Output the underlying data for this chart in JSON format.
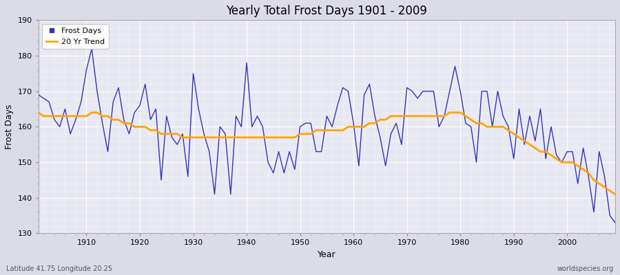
{
  "title": "Yearly Total Frost Days 1901 - 2009",
  "xlabel": "Year",
  "ylabel": "Frost Days",
  "xlim": [
    1901,
    2009
  ],
  "ylim": [
    130,
    190
  ],
  "yticks": [
    130,
    140,
    150,
    160,
    170,
    180,
    190
  ],
  "xticks": [
    1910,
    1920,
    1930,
    1940,
    1950,
    1960,
    1970,
    1980,
    1990,
    2000
  ],
  "line_color": "#3333bb",
  "trend_color": "#FFA500",
  "bg_color": "#dcdce8",
  "plot_bg_color": "#e8e8f2",
  "grid_color": "#ffffff",
  "subtitle_left": "Latitude 41.75 Longitude 20.25",
  "subtitle_right": "worldspecies.org",
  "legend_labels": [
    "Frost Days",
    "20 Yr Trend"
  ],
  "years": [
    1901,
    1902,
    1903,
    1904,
    1905,
    1906,
    1907,
    1908,
    1909,
    1910,
    1911,
    1912,
    1913,
    1914,
    1915,
    1916,
    1917,
    1918,
    1919,
    1920,
    1921,
    1922,
    1923,
    1924,
    1925,
    1926,
    1927,
    1928,
    1929,
    1930,
    1931,
    1932,
    1933,
    1934,
    1935,
    1936,
    1937,
    1938,
    1939,
    1940,
    1941,
    1942,
    1943,
    1944,
    1945,
    1946,
    1947,
    1948,
    1949,
    1950,
    1951,
    1952,
    1953,
    1954,
    1955,
    1956,
    1957,
    1958,
    1959,
    1960,
    1961,
    1962,
    1963,
    1964,
    1965,
    1966,
    1967,
    1968,
    1969,
    1970,
    1971,
    1972,
    1973,
    1974,
    1975,
    1976,
    1977,
    1978,
    1979,
    1980,
    1981,
    1982,
    1983,
    1984,
    1985,
    1986,
    1987,
    1988,
    1989,
    1990,
    1991,
    1992,
    1993,
    1994,
    1995,
    1996,
    1997,
    1998,
    1999,
    2000,
    2001,
    2002,
    2003,
    2004,
    2005,
    2006,
    2007,
    2008,
    2009
  ],
  "frost_days": [
    169,
    168,
    167,
    162,
    160,
    165,
    158,
    162,
    167,
    176,
    182,
    170,
    161,
    153,
    167,
    171,
    162,
    158,
    164,
    166,
    172,
    162,
    165,
    145,
    163,
    157,
    155,
    158,
    146,
    175,
    165,
    158,
    153,
    141,
    160,
    158,
    141,
    163,
    160,
    178,
    160,
    163,
    160,
    150,
    147,
    153,
    147,
    153,
    148,
    160,
    161,
    161,
    153,
    153,
    163,
    160,
    166,
    171,
    170,
    161,
    149,
    169,
    172,
    163,
    157,
    149,
    158,
    161,
    155,
    171,
    170,
    168,
    170,
    170,
    170,
    160,
    163,
    170,
    177,
    170,
    161,
    160,
    150,
    170,
    170,
    160,
    170,
    163,
    160,
    151,
    165,
    155,
    163,
    156,
    165,
    151,
    160,
    152,
    150,
    153,
    153,
    144,
    154,
    146,
    136,
    153,
    146,
    135,
    133
  ],
  "trend": [
    164,
    163,
    163,
    163,
    163,
    163,
    163,
    163,
    163,
    163,
    164,
    164,
    163,
    163,
    162,
    162,
    161,
    161,
    160,
    160,
    160,
    159,
    159,
    158,
    158,
    158,
    158,
    157,
    157,
    157,
    157,
    157,
    157,
    157,
    157,
    157,
    157,
    157,
    157,
    157,
    157,
    157,
    157,
    157,
    157,
    157,
    157,
    157,
    157,
    158,
    158,
    158,
    159,
    159,
    159,
    159,
    159,
    159,
    160,
    160,
    160,
    160,
    161,
    161,
    162,
    162,
    163,
    163,
    163,
    163,
    163,
    163,
    163,
    163,
    163,
    163,
    163,
    164,
    164,
    164,
    163,
    162,
    161,
    161,
    160,
    160,
    160,
    160,
    159,
    158,
    157,
    156,
    155,
    154,
    153,
    153,
    152,
    151,
    150,
    150,
    150,
    149,
    148,
    147,
    145,
    144,
    143,
    142,
    141
  ]
}
